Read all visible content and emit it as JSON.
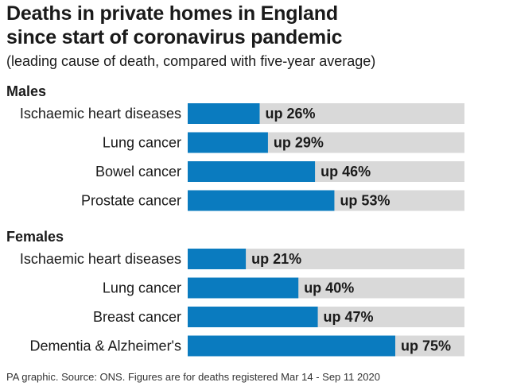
{
  "title_line1": "Deaths in private homes in England",
  "title_line2": "since start of coronavirus pandemic",
  "subtitle": "(leading cause of death, compared with five-year average)",
  "footnote": "PA graphic. Source: ONS. Figures are for deaths registered Mar 14 - Sep 11 2020",
  "colors": {
    "bar": "#0a7bbf",
    "track": "#d9d9d9"
  },
  "chart_data": {
    "type": "bar",
    "orientation": "horizontal",
    "title": "Deaths in private homes in England since start of coronavirus pandemic",
    "subtitle": "(leading cause of death, compared with five-year average)",
    "value_prefix": "up ",
    "value_suffix": "%",
    "xlim": [
      0,
      100
    ],
    "groups": [
      {
        "name": "Males",
        "categories": [
          "Ischaemic heart diseases",
          "Lung cancer",
          "Bowel cancer",
          "Prostate cancer"
        ],
        "values": [
          26,
          29,
          46,
          53
        ]
      },
      {
        "name": "Females",
        "categories": [
          "Ischaemic heart diseases",
          "Lung cancer",
          "Breast cancer",
          "Dementia & Alzheimer's"
        ],
        "values": [
          21,
          40,
          47,
          75
        ]
      }
    ]
  }
}
